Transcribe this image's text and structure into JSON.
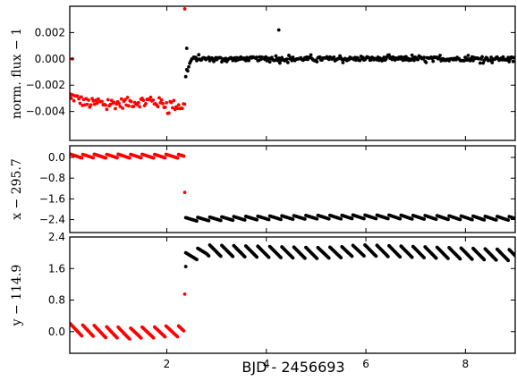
{
  "chart_data": {
    "type": "scatter",
    "xlabel": "BJD - 2456693",
    "xlim": [
      0.05,
      9.0
    ],
    "xticks": [
      2,
      4,
      6,
      8
    ],
    "x_tick_labels": [
      "2",
      "4",
      "6",
      "8"
    ],
    "colors": {
      "early": "#ff0000",
      "late": "#000000"
    },
    "split_x": 2.38,
    "panels": [
      {
        "id": "flux",
        "ylabel": "norm. flux − 1",
        "ylim": [
          -0.0062,
          0.004
        ],
        "yticks": [
          0.002,
          0.0,
          -0.002,
          -0.004
        ],
        "y_tick_labels": [
          "0.002",
          "0.000",
          "−0.002",
          "−0.004"
        ],
        "series": [
          {
            "color": "#ff0000",
            "x_start": 0.06,
            "x_end": 2.36,
            "count": 95,
            "trend": [
              [
                0.06,
                -0.0028
              ],
              [
                0.4,
                -0.0034
              ],
              [
                1.0,
                -0.0034
              ],
              [
                1.6,
                -0.0032
              ],
              [
                2.3,
                -0.0036
              ]
            ],
            "noise": 0.0004,
            "outliers": [
              [
                0.08,
                -0.003
              ],
              [
                0.1,
                0.0
              ],
              [
                2.36,
                0.0038
              ]
            ]
          },
          {
            "color": "#000000",
            "x_start": 2.38,
            "x_end": 9.0,
            "count": 330,
            "trend": [
              [
                2.38,
                -0.0012
              ],
              [
                2.5,
                0.0
              ],
              [
                9.0,
                0.0
              ]
            ],
            "noise": 0.00015,
            "outliers": [
              [
                4.25,
                0.0022
              ],
              [
                2.4,
                0.0008
              ]
            ]
          }
        ]
      },
      {
        "id": "x",
        "ylabel": "x − 295.7",
        "ylim": [
          -2.9,
          0.45
        ],
        "yticks": [
          0.0,
          -0.8,
          -1.6,
          -2.4
        ],
        "y_tick_labels": [
          "0.0",
          "−0.8",
          "−1.6",
          "−2.4"
        ],
        "series": [
          {
            "color": "#ff0000",
            "x_start": 0.06,
            "x_end": 2.34,
            "count": 110,
            "trend": [
              [
                0.06,
                0.05
              ],
              [
                2.34,
                0.05
              ]
            ],
            "sawtooth": 0.15,
            "saw_period": 0.24,
            "outliers": [
              [
                2.36,
                -1.35
              ]
            ]
          },
          {
            "color": "#000000",
            "x_start": 2.38,
            "x_end": 9.0,
            "count": 330,
            "trend": [
              [
                2.38,
                -2.4
              ],
              [
                3.5,
                -2.35
              ],
              [
                5.0,
                -2.3
              ],
              [
                6.5,
                -2.3
              ],
              [
                9.0,
                -2.35
              ]
            ],
            "sawtooth": 0.15,
            "saw_period": 0.24,
            "outliers": []
          }
        ]
      },
      {
        "id": "y",
        "ylabel": "y − 114.9",
        "ylim": [
          -0.55,
          2.4
        ],
        "yticks": [
          2.4,
          1.6,
          0.8,
          0.0
        ],
        "y_tick_labels": [
          "2.4",
          "1.6",
          "0.8",
          "0.0"
        ],
        "series": [
          {
            "color": "#ff0000",
            "x_start": 0.06,
            "x_end": 2.34,
            "count": 110,
            "trend": [
              [
                0.06,
                0.05
              ],
              [
                1.2,
                -0.05
              ],
              [
                2.34,
                0.02
              ]
            ],
            "sawtooth": 0.3,
            "saw_period": 0.24,
            "outliers": [
              [
                2.36,
                0.95
              ]
            ]
          },
          {
            "color": "#000000",
            "x_start": 2.38,
            "x_end": 9.0,
            "count": 330,
            "trend": [
              [
                2.38,
                1.85
              ],
              [
                2.8,
                2.05
              ],
              [
                5.0,
                2.0
              ],
              [
                6.0,
                2.05
              ],
              [
                9.0,
                1.95
              ]
            ],
            "sawtooth": 0.3,
            "saw_period": 0.24,
            "outliers": [
              [
                2.38,
                1.65
              ]
            ]
          }
        ]
      }
    ]
  }
}
